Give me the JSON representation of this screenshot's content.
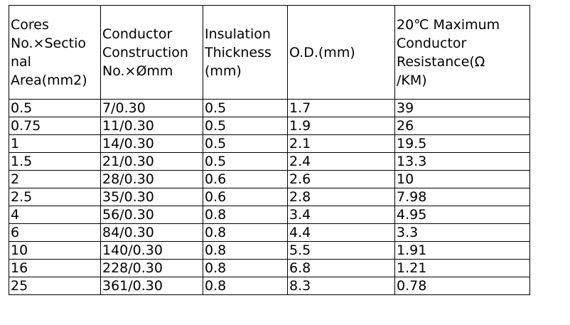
{
  "table": {
    "headers": [
      "Cores\nNo.×Sectio\nnal\nArea(mm2)",
      "Conductor\nConstruction\nNo.×Ømm",
      "Insulation\nThickness\n(mm)",
      "O.D.(mm)",
      "20℃ Maximum\nConductor\nResistance(Ω\n/KM)"
    ],
    "rows": [
      [
        "0.5",
        "7/0.30",
        "0.5",
        "1.7",
        "39"
      ],
      [
        "0.75",
        "11/0.30",
        "0.5",
        "1.9",
        "26"
      ],
      [
        "1",
        "14/0.30",
        "0.5",
        "2.1",
        "19.5"
      ],
      [
        "1.5",
        "21/0.30",
        "0.5",
        "2.4",
        "13.3"
      ],
      [
        "2",
        "28/0.30",
        "0.6",
        "2.6",
        "10"
      ],
      [
        "2.5",
        "35/0.30",
        "0.6",
        "2.8",
        "7.98"
      ],
      [
        "4",
        "56/0.30",
        "0.8",
        "3.4",
        "4.95"
      ],
      [
        "6",
        "84/0.30",
        "0.8",
        "4.4",
        "3.3"
      ],
      [
        "10",
        "140/0.30",
        "0.8",
        "5.5",
        "1.91"
      ],
      [
        "16",
        "228/0.30",
        "0.8",
        "6.8",
        "1.21"
      ],
      [
        "25",
        "361/0.30",
        "0.8",
        "8.3",
        "0.78"
      ]
    ]
  }
}
